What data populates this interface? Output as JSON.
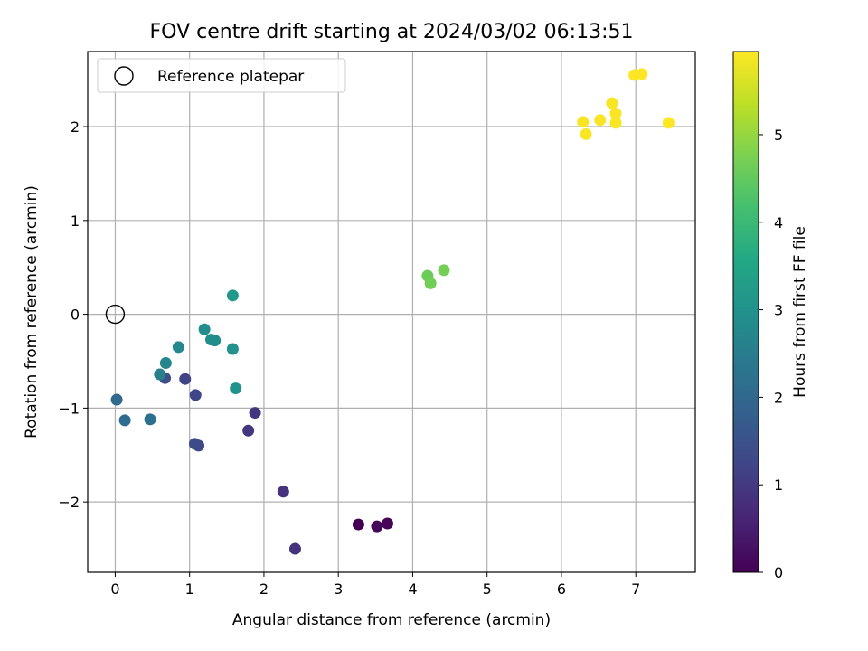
{
  "chart_data": {
    "type": "scatter",
    "title": "FOV centre drift starting at 2024/03/02 06:13:51",
    "xlabel": "Angular distance from reference (arcmin)",
    "ylabel": "Rotation from reference (arcmin)",
    "xlim": [
      -0.37,
      7.8
    ],
    "ylim": [
      -2.75,
      2.8
    ],
    "xticks": [
      0,
      1,
      2,
      3,
      4,
      5,
      6,
      7
    ],
    "yticks": [
      -2,
      -1,
      0,
      1,
      2
    ],
    "xtick_labels": [
      "0",
      "1",
      "2",
      "3",
      "4",
      "5",
      "6",
      "7"
    ],
    "ytick_labels": [
      "−2",
      "−1",
      "0",
      "1",
      "2"
    ],
    "grid": true,
    "legend": {
      "placement": "top-left",
      "entries": [
        "Reference platepar"
      ]
    },
    "colorbar": {
      "label": "Hours from first FF file",
      "colormap": "viridis",
      "range": [
        0,
        5.95
      ],
      "ticks": [
        0,
        1,
        2,
        3,
        4,
        5
      ],
      "tick_labels": [
        "0",
        "1",
        "2",
        "3",
        "4",
        "5"
      ]
    },
    "reference_point": {
      "x": 0,
      "y": 0
    },
    "points": [
      {
        "x": 3.27,
        "y": -2.24,
        "c": 0.0
      },
      {
        "x": 3.52,
        "y": -2.26,
        "c": 0.05
      },
      {
        "x": 3.66,
        "y": -2.23,
        "c": 0.08
      },
      {
        "x": 2.42,
        "y": -2.5,
        "c": 0.85
      },
      {
        "x": 2.26,
        "y": -1.89,
        "c": 0.88
      },
      {
        "x": 1.88,
        "y": -1.05,
        "c": 0.92
      },
      {
        "x": 1.79,
        "y": -1.24,
        "c": 0.95
      },
      {
        "x": 1.12,
        "y": -1.4,
        "c": 1.3
      },
      {
        "x": 1.07,
        "y": -1.38,
        "c": 1.35
      },
      {
        "x": 0.94,
        "y": -0.69,
        "c": 1.2
      },
      {
        "x": 1.08,
        "y": -0.86,
        "c": 1.25
      },
      {
        "x": 0.67,
        "y": -0.68,
        "c": 1.4
      },
      {
        "x": 0.02,
        "y": -0.91,
        "c": 2.0
      },
      {
        "x": 0.13,
        "y": -1.13,
        "c": 2.1
      },
      {
        "x": 0.47,
        "y": -1.12,
        "c": 2.2
      },
      {
        "x": 0.6,
        "y": -0.64,
        "c": 2.6
      },
      {
        "x": 0.68,
        "y": -0.52,
        "c": 2.7
      },
      {
        "x": 0.85,
        "y": -0.35,
        "c": 2.75
      },
      {
        "x": 1.2,
        "y": -0.16,
        "c": 2.85
      },
      {
        "x": 1.29,
        "y": -0.27,
        "c": 2.85
      },
      {
        "x": 1.34,
        "y": -0.28,
        "c": 2.9
      },
      {
        "x": 1.58,
        "y": -0.37,
        "c": 3.0
      },
      {
        "x": 1.62,
        "y": -0.79,
        "c": 3.0
      },
      {
        "x": 1.58,
        "y": 0.2,
        "c": 3.15
      },
      {
        "x": 4.2,
        "y": 0.41,
        "c": 4.6
      },
      {
        "x": 4.24,
        "y": 0.33,
        "c": 4.65
      },
      {
        "x": 4.42,
        "y": 0.47,
        "c": 4.7
      },
      {
        "x": 6.29,
        "y": 2.05,
        "c": 5.9
      },
      {
        "x": 6.33,
        "y": 1.92,
        "c": 5.9
      },
      {
        "x": 6.52,
        "y": 2.07,
        "c": 5.9
      },
      {
        "x": 6.68,
        "y": 2.25,
        "c": 5.9
      },
      {
        "x": 6.73,
        "y": 2.14,
        "c": 5.9
      },
      {
        "x": 6.73,
        "y": 2.04,
        "c": 5.9
      },
      {
        "x": 6.98,
        "y": 2.55,
        "c": 5.95
      },
      {
        "x": 7.08,
        "y": 2.56,
        "c": 5.95
      },
      {
        "x": 7.44,
        "y": 2.04,
        "c": 5.95
      }
    ]
  }
}
